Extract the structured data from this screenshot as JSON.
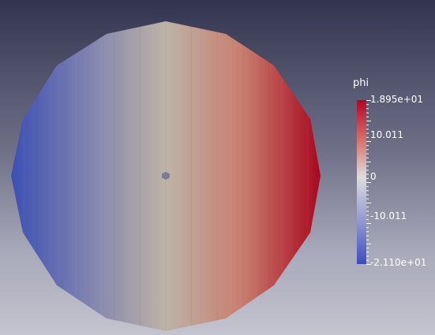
{
  "scalar_bar": {
    "title": "phi",
    "max_label": "1.895e+01",
    "upper_label": "10.011",
    "mid_label": "0",
    "lower_label": "-10.011",
    "min_label": "-2.110e+01",
    "max_value": 18.95,
    "min_value": -21.1,
    "colormap": [
      "#3b4cc0",
      "#dddddd",
      "#b40426"
    ]
  },
  "colors": {
    "background_top": "#33344f",
    "background_bottom": "#c4c4cf",
    "center_marker": "#7a7b94"
  }
}
